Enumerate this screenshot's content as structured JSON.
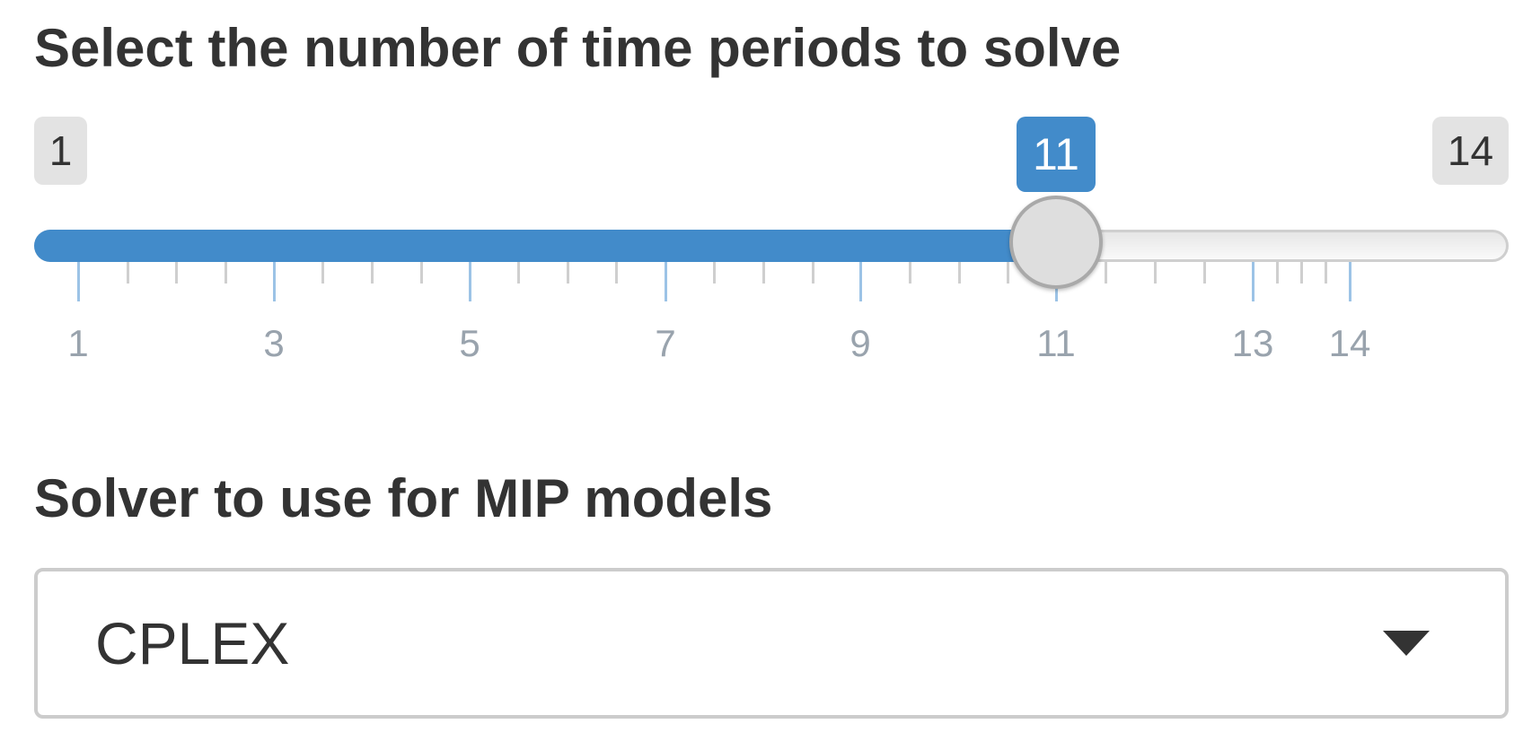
{
  "slider": {
    "label": "Select the number of time periods to solve",
    "min": 1,
    "max": 14,
    "value": 11,
    "min_label": "1",
    "max_label": "14",
    "value_label": "11",
    "tick_labels": [
      "1",
      "3",
      "5",
      "7",
      "9",
      "11",
      "13",
      "14"
    ],
    "accent_color": "#428bca"
  },
  "solver": {
    "label": "Solver to use for MIP models",
    "selected": "CPLEX",
    "icon": "caret-down-icon"
  }
}
